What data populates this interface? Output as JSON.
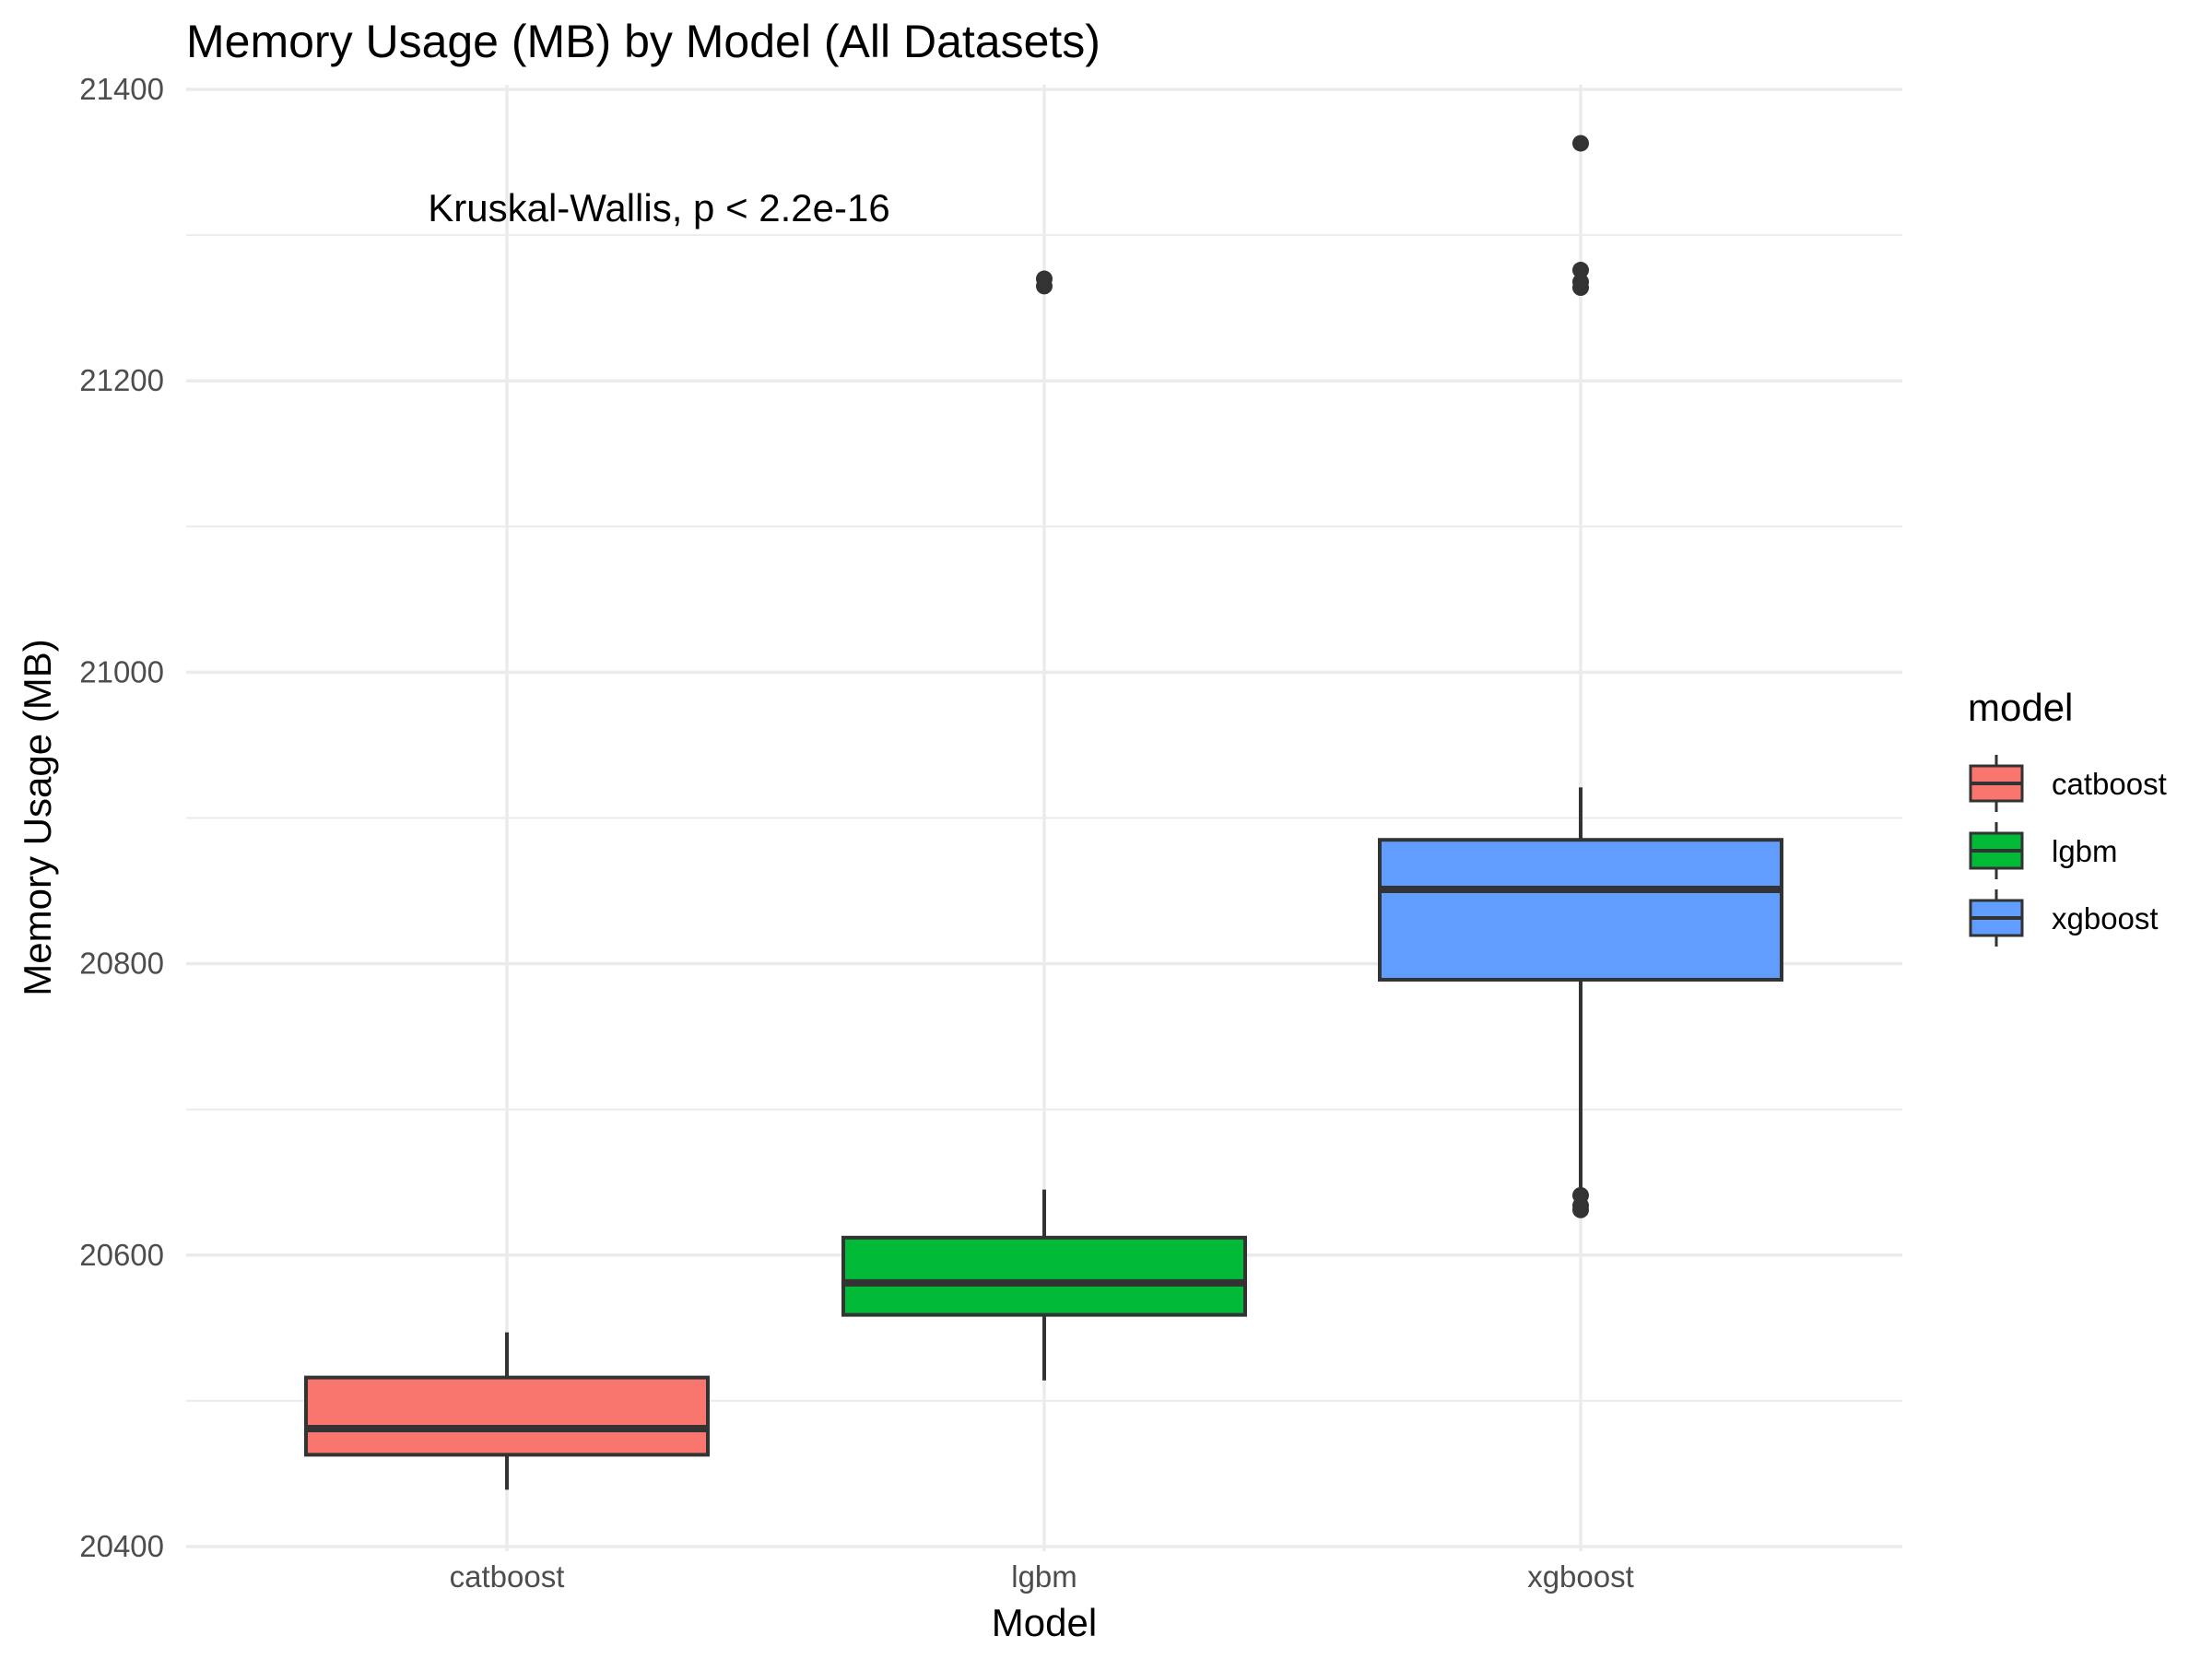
{
  "chart_data": {
    "type": "boxplot",
    "title": "Memory Usage (MB) by Model (All Datasets)",
    "xlabel": "Model",
    "ylabel": "Memory Usage (MB)",
    "ylim": [
      20400,
      21400
    ],
    "y_ticks": [
      20400,
      20600,
      20800,
      21000,
      21200,
      21400
    ],
    "categories": [
      "catboost",
      "lgbm",
      "xgboost"
    ],
    "series": [
      {
        "name": "catboost",
        "color": "#F8766D",
        "whisker_low": 20439,
        "q1": 20463,
        "median": 20481,
        "q3": 20516,
        "whisker_high": 20547,
        "outliers": []
      },
      {
        "name": "lgbm",
        "color": "#00BA38",
        "whisker_low": 20514,
        "q1": 20559,
        "median": 20581,
        "q3": 20612,
        "whisker_high": 20645,
        "outliers": [
          21265,
          21270
        ]
      },
      {
        "name": "xgboost",
        "color": "#619CFF",
        "whisker_low": 20642,
        "q1": 20789,
        "median": 20851,
        "q3": 20885,
        "whisker_high": 20921,
        "outliers": [
          20631,
          20634,
          20641,
          21264,
          21268,
          21276,
          21363
        ]
      }
    ],
    "annotation": "Kruskal-Wallis, p < 2.2e-16",
    "legend": {
      "title": "model",
      "position": "right",
      "entries": [
        "catboost",
        "lgbm",
        "xgboost"
      ]
    },
    "grid": true
  }
}
